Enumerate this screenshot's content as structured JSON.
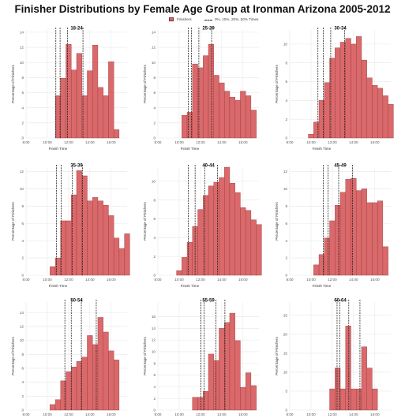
{
  "title": "Finisher Distributions by Female Age Group at Ironman Arizona 2005-2012",
  "legend": {
    "bars": "Finishers",
    "lines": "0%, 10%, 20%, 50% Times"
  },
  "colors": {
    "bar_fill": "#d9696b",
    "bar_edge": "#9a3a3c",
    "grid": "#e8e8e8",
    "line": "#222222"
  },
  "chart_data": [
    {
      "type": "bar",
      "title": "18-24",
      "xlabel": "Finish Time",
      "ylabel": "Percentage of Finishers",
      "xlim": [
        8,
        17.5
      ],
      "ylim": [
        0,
        14.3
      ],
      "xticks": [
        "8:00",
        "10:00",
        "12:00",
        "14:00",
        "16:00"
      ],
      "yticks": [
        0,
        2,
        4,
        6,
        8,
        10,
        12,
        14
      ],
      "bin_start": 10.75,
      "bin_width": 0.5,
      "values": [
        5.6,
        7.9,
        12.4,
        9.0,
        11.2,
        5.6,
        8.9,
        12.3,
        6.7,
        5.6,
        10.1,
        1.1
      ],
      "reference_lines": [
        10.8,
        11.2,
        11.9,
        13.35
      ]
    },
    {
      "type": "bar",
      "title": "25-29",
      "xlabel": "Finish Time",
      "ylabel": "Percentage of Finishers",
      "xlim": [
        8,
        17.5
      ],
      "ylim": [
        0,
        14.3
      ],
      "xticks": [
        "8:00",
        "10:00",
        "12:00",
        "14:00",
        "16:00"
      ],
      "yticks": [
        0,
        2,
        4,
        6,
        8,
        10,
        12,
        14
      ],
      "bin_start": 10.25,
      "bin_width": 0.5,
      "values": [
        3.0,
        3.4,
        9.8,
        9.3,
        10.9,
        12.4,
        8.3,
        7.3,
        6.2,
        5.4,
        5.0,
        6.2,
        5.6,
        3.7
      ],
      "reference_lines": [
        10.85,
        11.15,
        11.85,
        13.05
      ]
    },
    {
      "type": "bar",
      "title": "30-34",
      "xlabel": "Finish Time",
      "ylabel": "Percentage of Finishers",
      "xlim": [
        8,
        17.5
      ],
      "ylim": [
        0,
        11.5
      ],
      "xticks": [
        "8:00",
        "10:00",
        "12:00",
        "14:00",
        "16:00"
      ],
      "yticks": [
        0,
        2,
        4,
        6,
        8,
        10
      ],
      "bin_start": 9.75,
      "bin_width": 0.5,
      "values": [
        0.4,
        1.7,
        4.0,
        5.9,
        8.5,
        9.6,
        10.2,
        10.6,
        10.0,
        10.8,
        8.3,
        6.4,
        5.6,
        5.3,
        4.5,
        3.6
      ],
      "reference_lines": [
        10.65,
        11.15,
        11.85,
        13.15
      ]
    },
    {
      "type": "bar",
      "title": "35-39",
      "xlabel": "Finish Time",
      "ylabel": "Percentage of Finishers",
      "xlim": [
        8,
        17.5
      ],
      "ylim": [
        0,
        12.5
      ],
      "xticks": [
        "8:00",
        "10:00",
        "12:00",
        "14:00",
        "16:00"
      ],
      "yticks": [
        0,
        2,
        4,
        6,
        8,
        10,
        12
      ],
      "bin_start": 10.25,
      "bin_width": 0.5,
      "values": [
        1.0,
        2.0,
        6.3,
        6.3,
        9.3,
        12.1,
        11.5,
        8.6,
        9.0,
        8.6,
        8.1,
        6.9,
        4.3,
        3.1,
        4.8
      ],
      "reference_lines": [
        10.85,
        11.3,
        12.35,
        13.3
      ]
    },
    {
      "type": "bar",
      "title": "40-44",
      "xlabel": "Finish Time",
      "ylabel": "Percentage of Finishers",
      "xlim": [
        8,
        17.5
      ],
      "ylim": [
        0,
        11.5
      ],
      "xticks": [
        "8:00",
        "10:00",
        "12:00",
        "14:00",
        "16:00"
      ],
      "yticks": [
        0,
        2,
        4,
        6,
        8,
        10
      ],
      "bin_start": 9.75,
      "bin_width": 0.5,
      "values": [
        0.5,
        1.9,
        3.5,
        5.2,
        7.0,
        8.5,
        9.5,
        9.9,
        10.4,
        11.5,
        9.8,
        8.8,
        7.2,
        6.9,
        5.9,
        5.4
      ],
      "reference_lines": [
        10.85,
        11.5,
        12.4,
        13.6
      ]
    },
    {
      "type": "bar",
      "title": "45-49",
      "xlabel": "Finish Time",
      "ylabel": "Percentage of Finishers",
      "xlim": [
        8,
        17.5
      ],
      "ylim": [
        0,
        12.5
      ],
      "xticks": [
        "8:00",
        "10:00",
        "12:00",
        "14:00",
        "16:00"
      ],
      "yticks": [
        0,
        2,
        4,
        6,
        8,
        10,
        12
      ],
      "bin_start": 10.25,
      "bin_width": 0.5,
      "values": [
        1.2,
        2.4,
        4.3,
        6.3,
        8.1,
        9.6,
        11.1,
        11.2,
        9.8,
        10.0,
        8.4,
        8.4,
        8.6,
        3.3
      ],
      "reference_lines": [
        11.15,
        11.6,
        12.6,
        13.9
      ]
    },
    {
      "type": "bar",
      "title": "50-54",
      "xlabel": "Finish Time",
      "ylabel": "Percentage of Finishers",
      "xlim": [
        8,
        17.5
      ],
      "ylim": [
        0,
        15.5
      ],
      "xticks": [
        "8:00",
        "10:00",
        "12:00",
        "14:00",
        "16:00"
      ],
      "yticks": [
        0,
        2,
        4,
        6,
        8,
        10,
        12,
        14
      ],
      "bin_start": 10.25,
      "bin_width": 0.5,
      "values": [
        0.8,
        1.5,
        4.2,
        5.5,
        6.2,
        7.0,
        7.6,
        10.7,
        9.4,
        13.3,
        11.2,
        8.5,
        7.2
      ],
      "reference_lines": [
        11.65,
        12.25,
        13.2,
        14.6
      ]
    },
    {
      "type": "bar",
      "title": "55-59",
      "xlabel": "Finish Time",
      "ylabel": "Percentage of Finishers",
      "xlim": [
        8,
        17.5
      ],
      "ylim": [
        0,
        18.5
      ],
      "xticks": [
        "8:00",
        "10:00",
        "12:00",
        "14:00",
        "16:00"
      ],
      "yticks": [
        0,
        2,
        4,
        6,
        8,
        10,
        12,
        14,
        16
      ],
      "bin_start": 11.25,
      "bin_width": 0.5,
      "values": [
        2.2,
        2.2,
        3.2,
        9.6,
        8.5,
        14.0,
        15.0,
        16.6,
        11.9,
        3.9,
        6.4,
        4.2
      ],
      "reference_lines": [
        12.05,
        12.35,
        13.45,
        14.3
      ]
    },
    {
      "type": "bar",
      "title": "60-64",
      "xlabel": "Finish Time",
      "ylabel": "Percentage of Finishers",
      "xlim": [
        8,
        17.5
      ],
      "ylim": [
        0,
        28.5
      ],
      "xticks": [
        "8:00",
        "10:00",
        "12:00",
        "14:00",
        "16:00"
      ],
      "yticks": [
        0,
        5,
        10,
        15,
        20,
        25
      ],
      "bin_start": 11.75,
      "bin_width": 0.5,
      "values": [
        5.6,
        11.1,
        5.6,
        22.2,
        5.6,
        5.6,
        16.7,
        11.1,
        5.6
      ],
      "reference_lines": [
        12.45,
        12.7,
        13.55,
        14.6
      ]
    }
  ]
}
